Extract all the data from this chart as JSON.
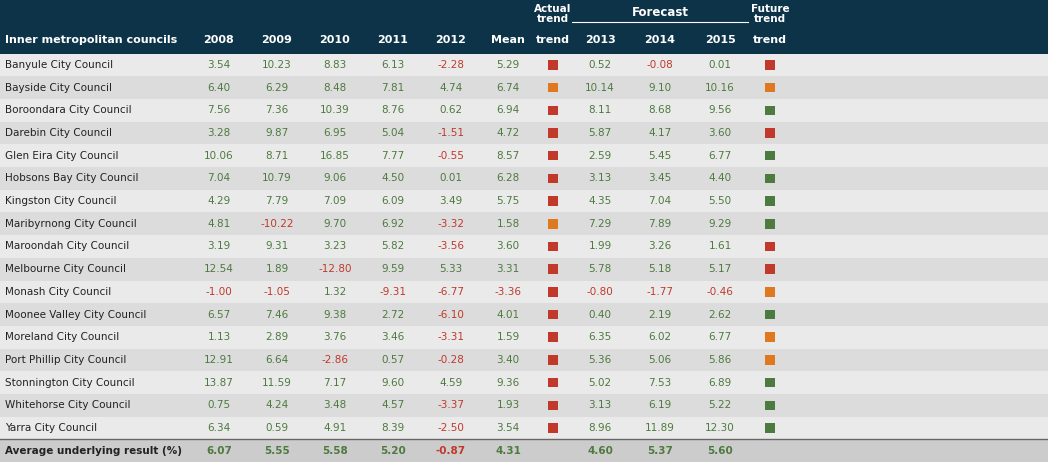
{
  "header_bg": "#0d3349",
  "header_text_color": "#ffffff",
  "green_color": "#4d7a3e",
  "red_color": "#c0392b",
  "orange_color": "#e07820",
  "rows": [
    {
      "name": "Banyule City Council",
      "v2008": "3.54",
      "v2009": "10.23",
      "v2010": "8.83",
      "v2011": "6.13",
      "v2012": "-2.28",
      "mean": "5.29",
      "actual_trend": "red",
      "v2013": "0.52",
      "v2014": "-0.08",
      "v2015": "0.01",
      "future_trend": "red"
    },
    {
      "name": "Bayside City Council",
      "v2008": "6.40",
      "v2009": "6.29",
      "v2010": "8.48",
      "v2011": "7.81",
      "v2012": "4.74",
      "mean": "6.74",
      "actual_trend": "orange",
      "v2013": "10.14",
      "v2014": "9.10",
      "v2015": "10.16",
      "future_trend": "orange"
    },
    {
      "name": "Boroondara City Council",
      "v2008": "7.56",
      "v2009": "7.36",
      "v2010": "10.39",
      "v2011": "8.76",
      "v2012": "0.62",
      "mean": "6.94",
      "actual_trend": "red",
      "v2013": "8.11",
      "v2014": "8.68",
      "v2015": "9.56",
      "future_trend": "green"
    },
    {
      "name": "Darebin City Council",
      "v2008": "3.28",
      "v2009": "9.87",
      "v2010": "6.95",
      "v2011": "5.04",
      "v2012": "-1.51",
      "mean": "4.72",
      "actual_trend": "red",
      "v2013": "5.87",
      "v2014": "4.17",
      "v2015": "3.60",
      "future_trend": "red"
    },
    {
      "name": "Glen Eira City Council",
      "v2008": "10.06",
      "v2009": "8.71",
      "v2010": "16.85",
      "v2011": "7.77",
      "v2012": "-0.55",
      "mean": "8.57",
      "actual_trend": "red",
      "v2013": "2.59",
      "v2014": "5.45",
      "v2015": "6.77",
      "future_trend": "green"
    },
    {
      "name": "Hobsons Bay City Council",
      "v2008": "7.04",
      "v2009": "10.79",
      "v2010": "9.06",
      "v2011": "4.50",
      "v2012": "0.01",
      "mean": "6.28",
      "actual_trend": "red",
      "v2013": "3.13",
      "v2014": "3.45",
      "v2015": "4.40",
      "future_trend": "green"
    },
    {
      "name": "Kingston City Council",
      "v2008": "4.29",
      "v2009": "7.79",
      "v2010": "7.09",
      "v2011": "6.09",
      "v2012": "3.49",
      "mean": "5.75",
      "actual_trend": "red",
      "v2013": "4.35",
      "v2014": "7.04",
      "v2015": "5.50",
      "future_trend": "green"
    },
    {
      "name": "Maribyrnong City Council",
      "v2008": "4.81",
      "v2009": "-10.22",
      "v2010": "9.70",
      "v2011": "6.92",
      "v2012": "-3.32",
      "mean": "1.58",
      "actual_trend": "orange",
      "v2013": "7.29",
      "v2014": "7.89",
      "v2015": "9.29",
      "future_trend": "green"
    },
    {
      "name": "Maroondah City Council",
      "v2008": "3.19",
      "v2009": "9.31",
      "v2010": "3.23",
      "v2011": "5.82",
      "v2012": "-3.56",
      "mean": "3.60",
      "actual_trend": "red",
      "v2013": "1.99",
      "v2014": "3.26",
      "v2015": "1.61",
      "future_trend": "red"
    },
    {
      "name": "Melbourne City Council",
      "v2008": "12.54",
      "v2009": "1.89",
      "v2010": "-12.80",
      "v2011": "9.59",
      "v2012": "5.33",
      "mean": "3.31",
      "actual_trend": "red",
      "v2013": "5.78",
      "v2014": "5.18",
      "v2015": "5.17",
      "future_trend": "red"
    },
    {
      "name": "Monash City Council",
      "v2008": "-1.00",
      "v2009": "-1.05",
      "v2010": "1.32",
      "v2011": "-9.31",
      "v2012": "-6.77",
      "mean": "-3.36",
      "actual_trend": "red",
      "v2013": "-0.80",
      "v2014": "-1.77",
      "v2015": "-0.46",
      "future_trend": "orange"
    },
    {
      "name": "Moonee Valley City Council",
      "v2008": "6.57",
      "v2009": "7.46",
      "v2010": "9.38",
      "v2011": "2.72",
      "v2012": "-6.10",
      "mean": "4.01",
      "actual_trend": "red",
      "v2013": "0.40",
      "v2014": "2.19",
      "v2015": "2.62",
      "future_trend": "green"
    },
    {
      "name": "Moreland City Council",
      "v2008": "1.13",
      "v2009": "2.89",
      "v2010": "3.76",
      "v2011": "3.46",
      "v2012": "-3.31",
      "mean": "1.59",
      "actual_trend": "red",
      "v2013": "6.35",
      "v2014": "6.02",
      "v2015": "6.77",
      "future_trend": "orange"
    },
    {
      "name": "Port Phillip City Council",
      "v2008": "12.91",
      "v2009": "6.64",
      "v2010": "-2.86",
      "v2011": "0.57",
      "v2012": "-0.28",
      "mean": "3.40",
      "actual_trend": "red",
      "v2013": "5.36",
      "v2014": "5.06",
      "v2015": "5.86",
      "future_trend": "orange"
    },
    {
      "name": "Stonnington City Council",
      "v2008": "13.87",
      "v2009": "11.59",
      "v2010": "7.17",
      "v2011": "9.60",
      "v2012": "4.59",
      "mean": "9.36",
      "actual_trend": "red",
      "v2013": "5.02",
      "v2014": "7.53",
      "v2015": "6.89",
      "future_trend": "green"
    },
    {
      "name": "Whitehorse City Council",
      "v2008": "0.75",
      "v2009": "4.24",
      "v2010": "3.48",
      "v2011": "4.57",
      "v2012": "-3.37",
      "mean": "1.93",
      "actual_trend": "red",
      "v2013": "3.13",
      "v2014": "6.19",
      "v2015": "5.22",
      "future_trend": "green"
    },
    {
      "name": "Yarra City Council",
      "v2008": "6.34",
      "v2009": "0.59",
      "v2010": "4.91",
      "v2011": "8.39",
      "v2012": "-2.50",
      "mean": "3.54",
      "actual_trend": "red",
      "v2013": "8.96",
      "v2014": "11.89",
      "v2015": "12.30",
      "future_trend": "green"
    }
  ],
  "avg_row": {
    "name": "Average underlying result (%)",
    "v2008": "6.07",
    "v2009": "5.55",
    "v2010": "5.58",
    "v2011": "5.20",
    "v2012": "-0.87",
    "mean": "4.31",
    "v2013": "4.60",
    "v2014": "5.37",
    "v2015": "5.60"
  }
}
